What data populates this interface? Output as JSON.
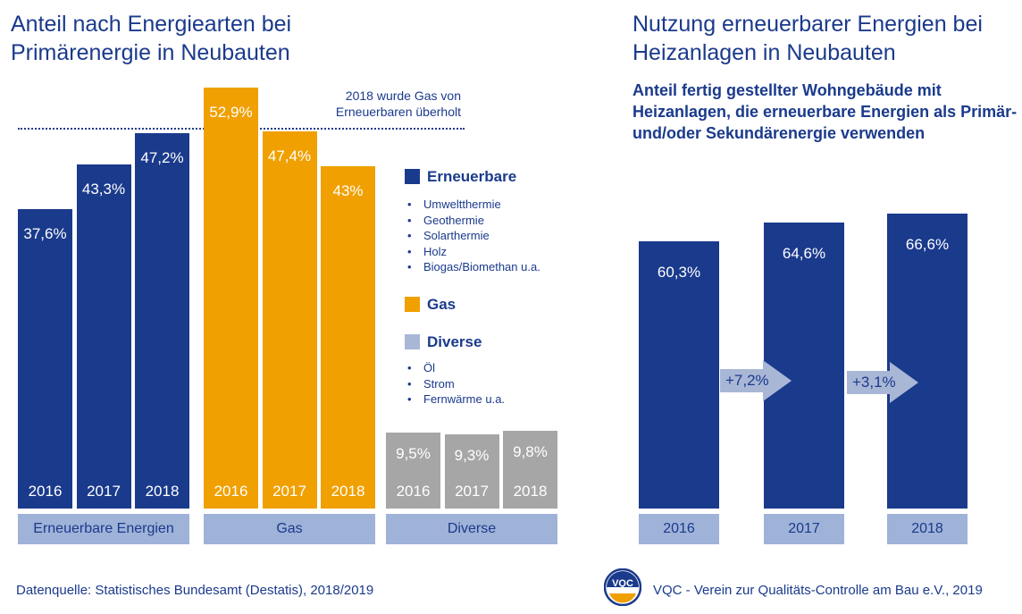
{
  "left": {
    "title": "Anteil nach Energiearten bei\nPrimärenergie in Neubauten",
    "note": "2018 wurde Gas von\nErneuerbaren überholt"
  },
  "right": {
    "title": "Nutzung erneuerbarer Energien bei\nHeizanlagen in Neubauten",
    "subtitle": "Anteil fertig gestellter Wohngebäude mit\nHeizanlagen, die erneuerbare Energien als Primär-\nund/oder Sekundärenergie verwenden"
  },
  "legend": [
    {
      "label": "Erneuerbare",
      "color": "#1a3a8c",
      "items": [
        "Umweltthermie",
        "Geothermie",
        "Solarthermie",
        "Holz",
        "Biogas/Biomethan u.a."
      ]
    },
    {
      "label": "Gas",
      "color": "#f0a000",
      "items": []
    },
    {
      "label": "Diverse",
      "color": "#a9b7d6",
      "items": [
        "Öl",
        "Strom",
        "Fernwärme u.a."
      ]
    }
  ],
  "source": "Datenquelle: Statistisches Bundesamt (Destatis), 2018/2019",
  "footer": {
    "logo_text": "VQC",
    "text": "VQC - Verein zur Qualitäts-Controlle am Bau e.V., 2019"
  },
  "chart_data": [
    {
      "type": "bar",
      "title": "Anteil nach Energiearten bei Primärenergie in Neubauten",
      "groups": [
        {
          "name": "Erneuerbare Energien",
          "color": "#1a3a8c",
          "years": [
            "2016",
            "2017",
            "2018"
          ],
          "values": [
            37.6,
            43.3,
            47.2
          ],
          "labels": [
            "37,6%",
            "43,3%",
            "47,2%"
          ]
        },
        {
          "name": "Gas",
          "color": "#f0a000",
          "years": [
            "2016",
            "2017",
            "2018"
          ],
          "values": [
            52.9,
            47.4,
            43.0
          ],
          "labels": [
            "52,9%",
            "47,4%",
            "43%"
          ]
        },
        {
          "name": "Diverse",
          "color": "#a6a6a6",
          "years": [
            "2016",
            "2017",
            "2018"
          ],
          "values": [
            9.5,
            9.3,
            9.8
          ],
          "labels": [
            "9,5%",
            "9,3%",
            "9,8%"
          ]
        }
      ]
    },
    {
      "type": "bar",
      "title": "Nutzung erneuerbarer Energien bei Heizanlagen in Neubauten",
      "color": "#1a3a8c",
      "categories": [
        "2016",
        "2017",
        "2018"
      ],
      "values": [
        60.3,
        64.6,
        66.6
      ],
      "labels": [
        "60,3%",
        "64,6%",
        "66,6%"
      ],
      "changes": [
        "+7,2%",
        "+3,1%"
      ]
    }
  ]
}
